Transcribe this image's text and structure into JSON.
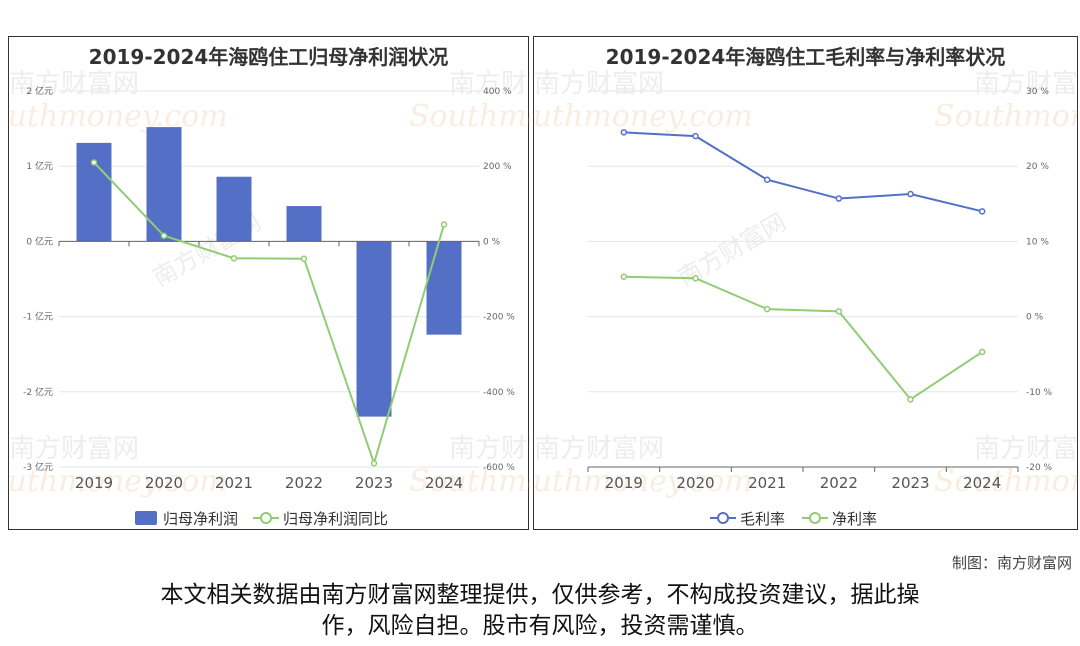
{
  "charts": {
    "left": {
      "title": "2019-2024年海鸥住工归母净利润状况",
      "categories": [
        "2019",
        "2020",
        "2021",
        "2022",
        "2023",
        "2024"
      ],
      "y_left": {
        "ticks": [
          "2 亿元",
          "1 亿元",
          "0 亿元",
          "-1 亿元",
          "-2 亿元",
          "-3 亿元"
        ]
      },
      "y_right": {
        "ticks": [
          "400 %",
          "200 %",
          "0 %",
          "-200 %",
          "-400 %",
          "-600 %"
        ]
      },
      "legend": [
        "归母净利润",
        "归母净利润同比"
      ]
    },
    "right": {
      "title": "2019-2024年海鸥住工毛利率与净利率状况",
      "categories": [
        "2019",
        "2020",
        "2021",
        "2022",
        "2023",
        "2024"
      ],
      "y_right": {
        "ticks": [
          "30 %",
          "20 %",
          "10 %",
          "0 %",
          "-10 %",
          "-20 %"
        ]
      },
      "legend": [
        "毛利率",
        "净利率"
      ]
    }
  },
  "chart_data": [
    {
      "type": "bar",
      "title": "2019-2024年海鸥住工归母净利润状况",
      "categories": [
        "2019",
        "2020",
        "2021",
        "2022",
        "2023",
        "2024"
      ],
      "series": [
        {
          "name": "归母净利润",
          "type": "bar",
          "axis": "left",
          "unit": "亿元",
          "color": "#5470c6",
          "values": [
            1.31,
            1.52,
            0.86,
            0.47,
            -2.33,
            -1.24
          ]
        },
        {
          "name": "归母净利润同比",
          "type": "line",
          "axis": "right",
          "unit": "%",
          "color": "#91cc75",
          "values": [
            210,
            15,
            -45,
            -46,
            -590,
            45
          ]
        }
      ],
      "ylim_left": [
        -3,
        2
      ],
      "ylim_right": [
        -600,
        400
      ],
      "grid": true,
      "legend_position": "bottom"
    },
    {
      "type": "line",
      "title": "2019-2024年海鸥住工毛利率与净利率状况",
      "categories": [
        "2019",
        "2020",
        "2021",
        "2022",
        "2023",
        "2024"
      ],
      "series": [
        {
          "name": "毛利率",
          "unit": "%",
          "color": "#5470c6",
          "values": [
            24.5,
            24.0,
            18.2,
            15.7,
            16.3,
            14.0
          ]
        },
        {
          "name": "净利率",
          "unit": "%",
          "color": "#91cc75",
          "values": [
            5.3,
            5.1,
            1.0,
            0.7,
            -11.0,
            -4.7
          ]
        }
      ],
      "ylim": [
        -20,
        30
      ],
      "grid": true,
      "legend_position": "bottom"
    }
  ],
  "watermark": {
    "cn": "南方财富网",
    "en": "Southmoney.com"
  },
  "footer": {
    "credit": "制图：南方财富网",
    "disclaimer_line1": "本文相关数据由南方财富网整理提供，仅供参考，不构成投资建议，据此操",
    "disclaimer_line2": "作，风险自担。股市有风险，投资需谨慎。"
  },
  "colors": {
    "bar": "#5470c6",
    "line_green": "#91cc75",
    "line_blue": "#5470c6",
    "grid": "#e6e6e6"
  }
}
